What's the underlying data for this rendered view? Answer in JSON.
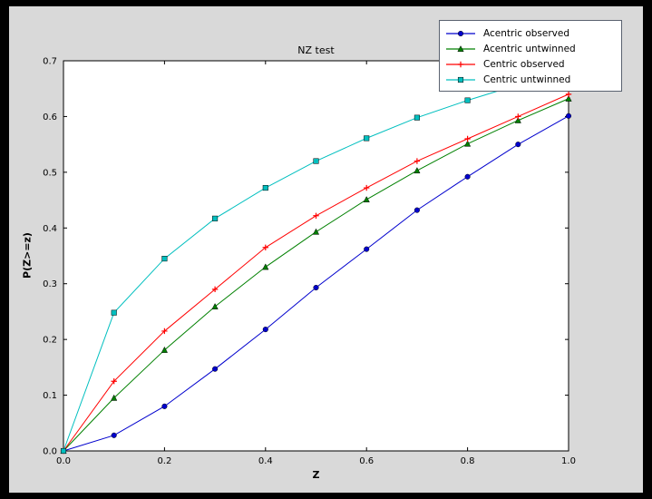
{
  "figure": {
    "outer_background": "#000000",
    "background": "#d9d9d9",
    "plot_background": "#ffffff",
    "axis_color": "#000000"
  },
  "chart_data": {
    "type": "line",
    "title": "NZ test",
    "xlabel": "Z",
    "ylabel": "P(Z>=z)",
    "xlim": [
      0.0,
      1.0
    ],
    "ylim": [
      0.0,
      0.7
    ],
    "grid": false,
    "legend_position": "upper right",
    "x_ticks": [
      0.0,
      0.2,
      0.4,
      0.6,
      0.8,
      1.0
    ],
    "x_tick_labels": [
      "0.0",
      "0.2",
      "0.4",
      "0.6",
      "0.8",
      "1.0"
    ],
    "y_ticks": [
      0.0,
      0.1,
      0.2,
      0.3,
      0.4,
      0.5,
      0.6,
      0.7
    ],
    "y_tick_labels": [
      "0.0",
      "0.1",
      "0.2",
      "0.3",
      "0.4",
      "0.5",
      "0.6",
      "0.7"
    ],
    "x": [
      0.0,
      0.1,
      0.2,
      0.3,
      0.4,
      0.5,
      0.6,
      0.7,
      0.8,
      0.9,
      1.0
    ],
    "series": [
      {
        "name": "Acentric observed",
        "color": "#0000cd",
        "marker": "circle",
        "values": [
          0.0,
          0.028,
          0.08,
          0.147,
          0.218,
          0.293,
          0.362,
          0.432,
          0.492,
          0.55,
          0.601
        ]
      },
      {
        "name": "Acentric untwinned",
        "color": "#008000",
        "marker": "triangle",
        "values": [
          0.0,
          0.095,
          0.181,
          0.259,
          0.33,
          0.393,
          0.451,
          0.503,
          0.551,
          0.593,
          0.632
        ]
      },
      {
        "name": "Centric observed",
        "color": "#ff0000",
        "marker": "plus",
        "values": [
          0.0,
          0.125,
          0.215,
          0.29,
          0.365,
          0.422,
          0.472,
          0.52,
          0.56,
          0.6,
          0.64
        ]
      },
      {
        "name": "Centric untwinned",
        "color": "#00bfbf",
        "marker": "square",
        "values": [
          0.0,
          0.248,
          0.345,
          0.417,
          0.472,
          0.52,
          0.561,
          0.598,
          0.629,
          0.657,
          0.683
        ]
      }
    ]
  }
}
